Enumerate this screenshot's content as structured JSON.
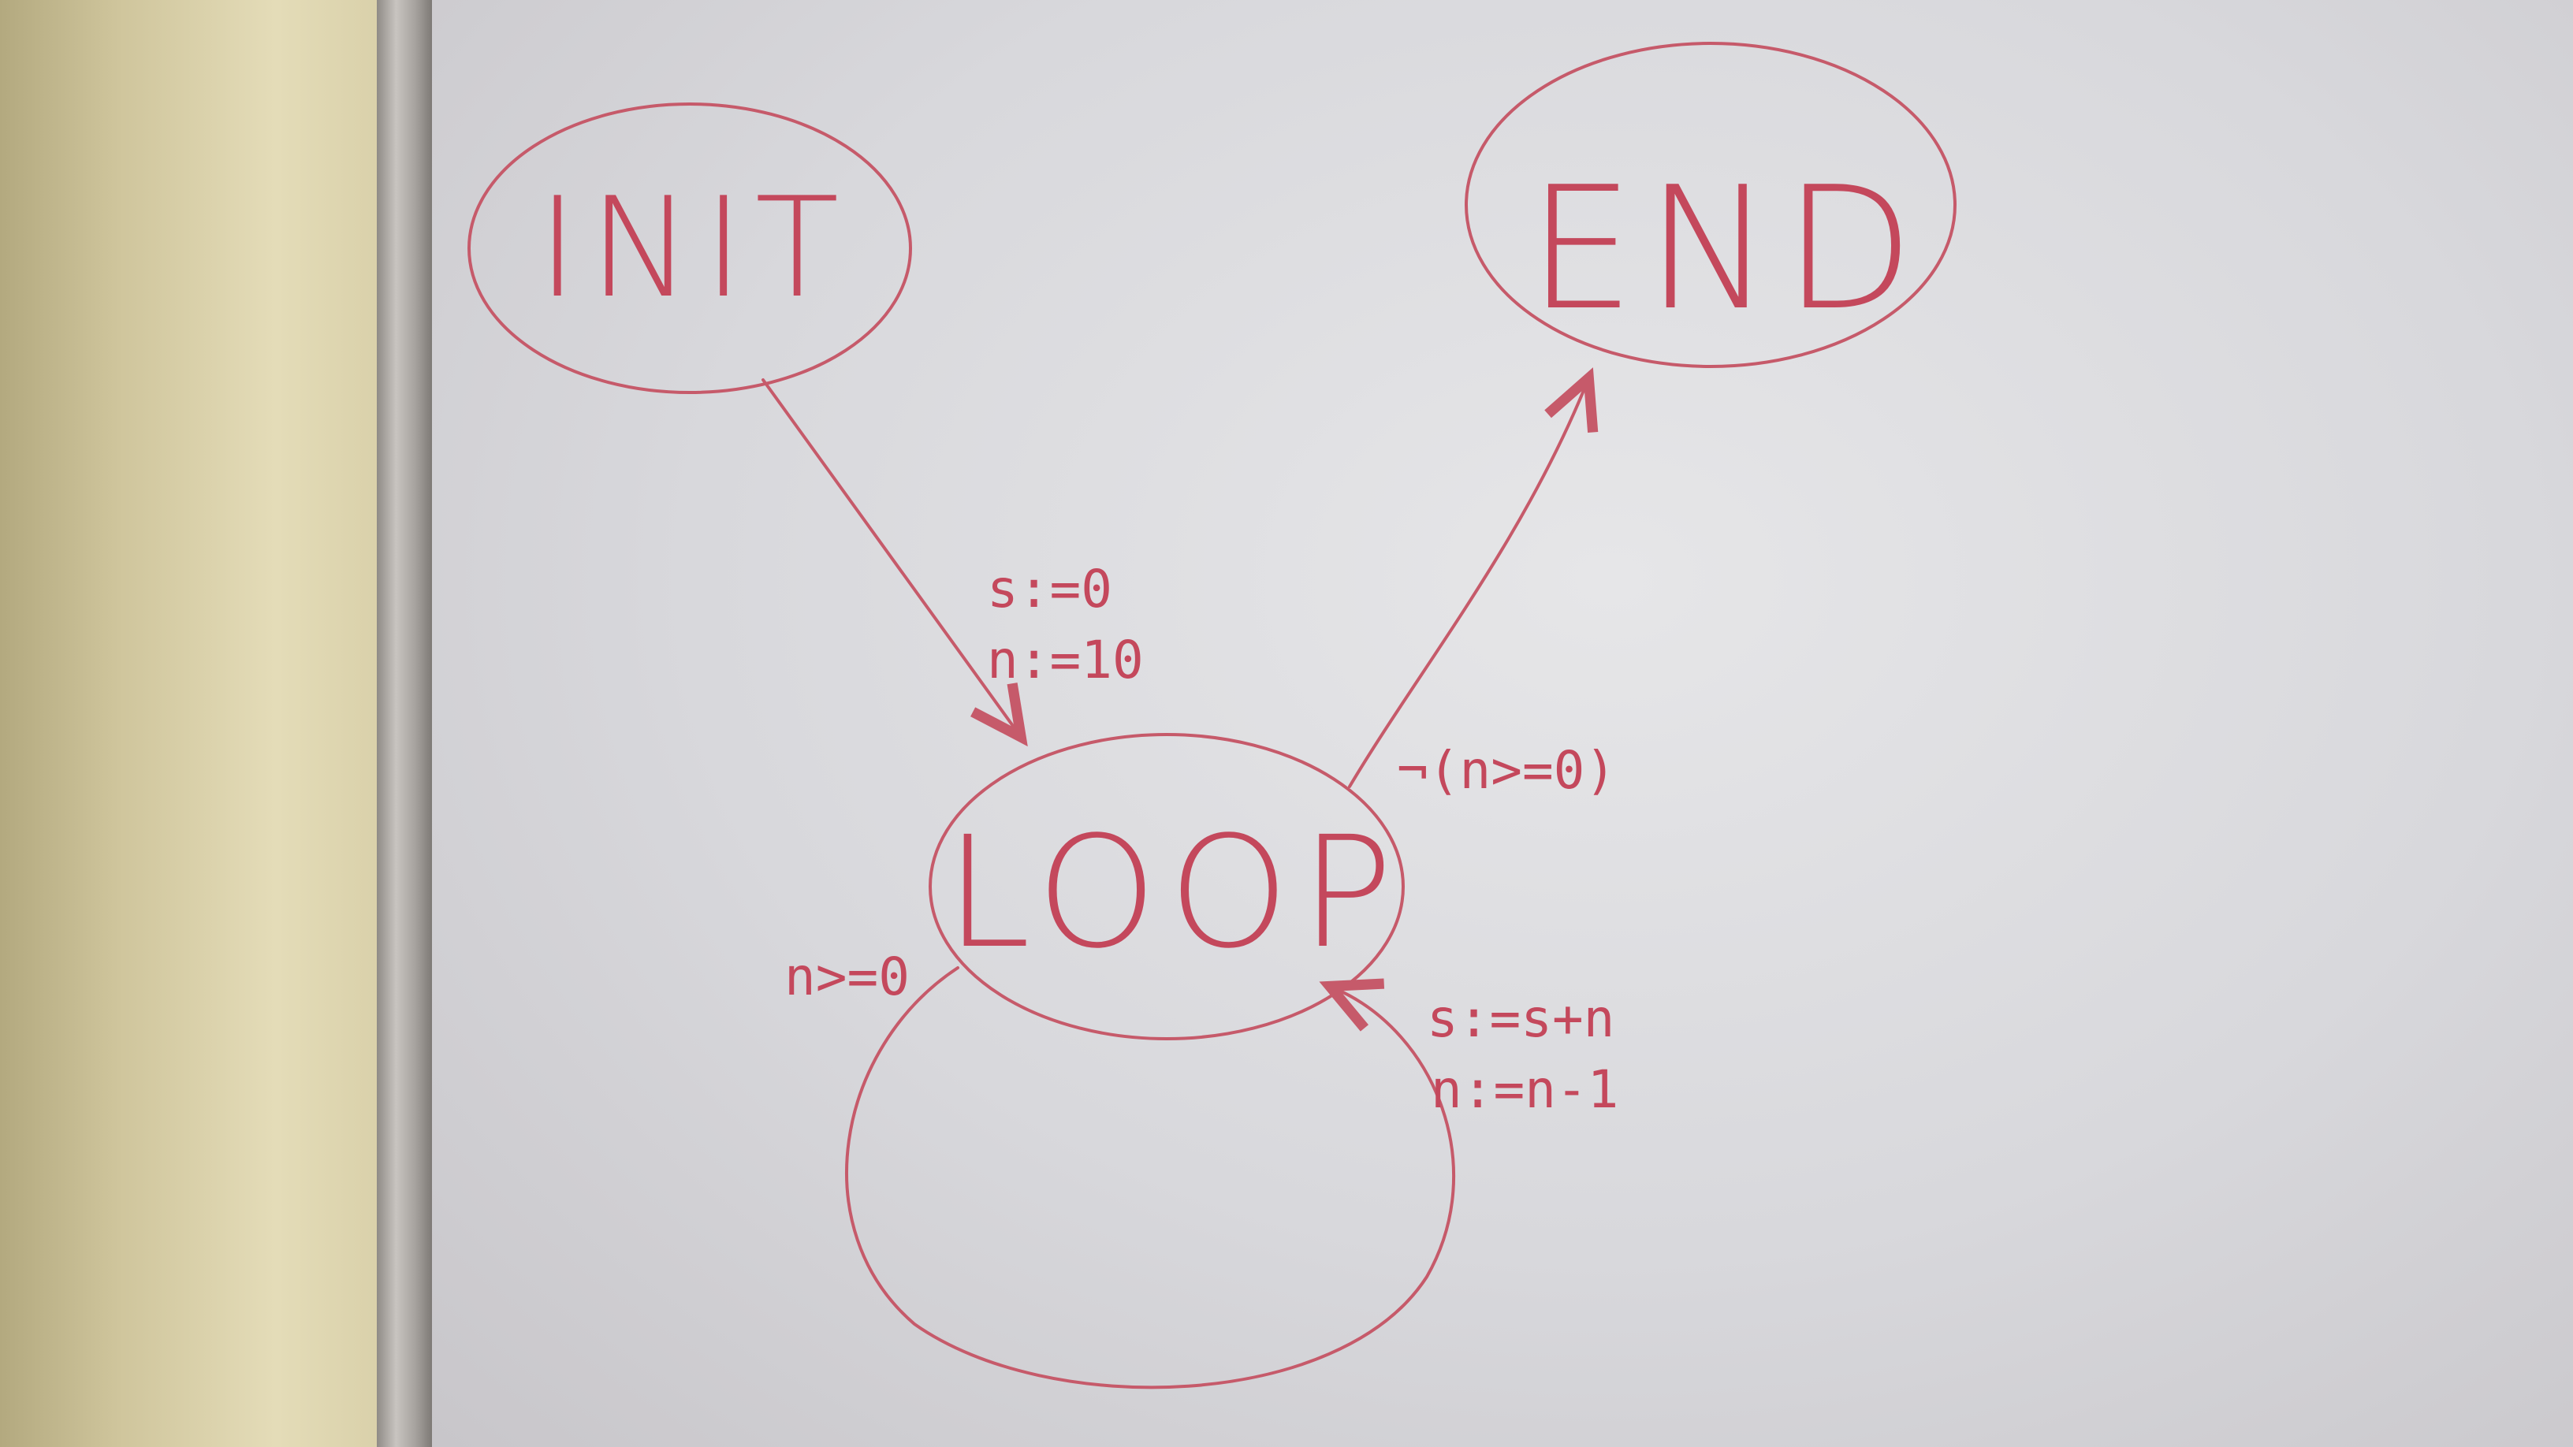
{
  "diagram": {
    "ink_color": "#c65a6a",
    "states": {
      "init": "INIT",
      "end": "END",
      "loop": "LOOP"
    },
    "transitions": {
      "init_to_loop": {
        "line1": "s:=0",
        "line2": "n:=10"
      },
      "loop_to_end": {
        "guard": "¬(n>=0)"
      },
      "loop_self": {
        "guard": "n>=0",
        "line1": "s:=s+n",
        "line2": "n:=n-1"
      }
    }
  }
}
